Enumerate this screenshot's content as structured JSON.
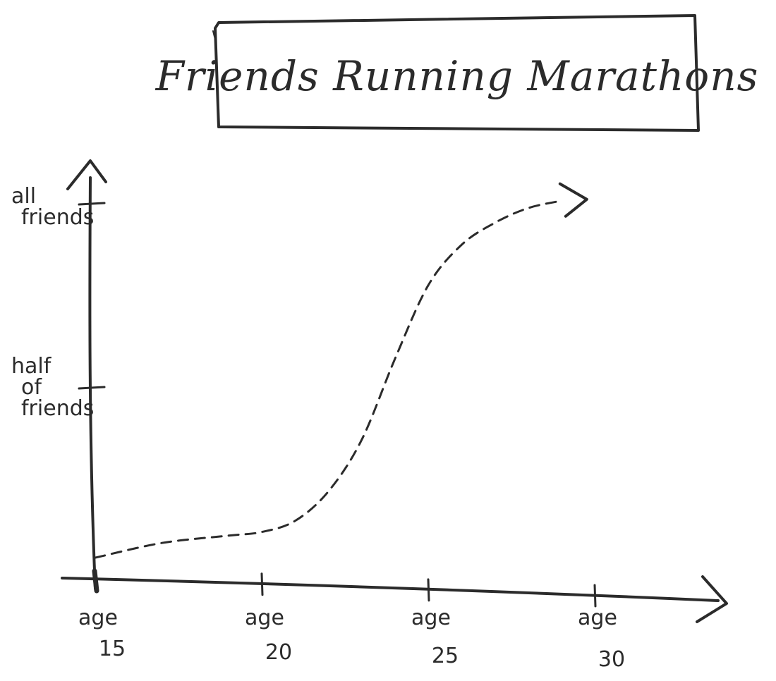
{
  "chart_data": {
    "type": "line",
    "title": "Friends Running Marathons",
    "xlabel": "",
    "ylabel": "",
    "x_ticks": [
      {
        "value": 15,
        "label_top": "age",
        "label_bottom": "15"
      },
      {
        "value": 20,
        "label_top": "age",
        "label_bottom": "20"
      },
      {
        "value": 25,
        "label_top": "age",
        "label_bottom": "25"
      },
      {
        "value": 30,
        "label_top": "age",
        "label_bottom": "30"
      }
    ],
    "y_ticks": [
      {
        "value": 1.0,
        "lines": [
          "all",
          "friends"
        ]
      },
      {
        "value": 0.5,
        "lines": [
          "half",
          "of",
          "friends"
        ]
      }
    ],
    "xlim": [
      15,
      32
    ],
    "ylim": [
      0,
      1.1
    ],
    "line_style": "dashed",
    "series": [
      {
        "values": [
          {
            "x": 15,
            "y": 0.04
          },
          {
            "x": 17,
            "y": 0.08
          },
          {
            "x": 19,
            "y": 0.1
          },
          {
            "x": 20,
            "y": 0.11
          },
          {
            "x": 21,
            "y": 0.14
          },
          {
            "x": 22,
            "y": 0.22
          },
          {
            "x": 23,
            "y": 0.36
          },
          {
            "x": 24,
            "y": 0.58
          },
          {
            "x": 25,
            "y": 0.78
          },
          {
            "x": 26,
            "y": 0.89
          },
          {
            "x": 27,
            "y": 0.95
          },
          {
            "x": 28,
            "y": 0.99
          },
          {
            "x": 29,
            "y": 1.01
          }
        ]
      }
    ],
    "colors": {
      "ink": "#2b2b2b",
      "background": "#ffffff"
    }
  }
}
